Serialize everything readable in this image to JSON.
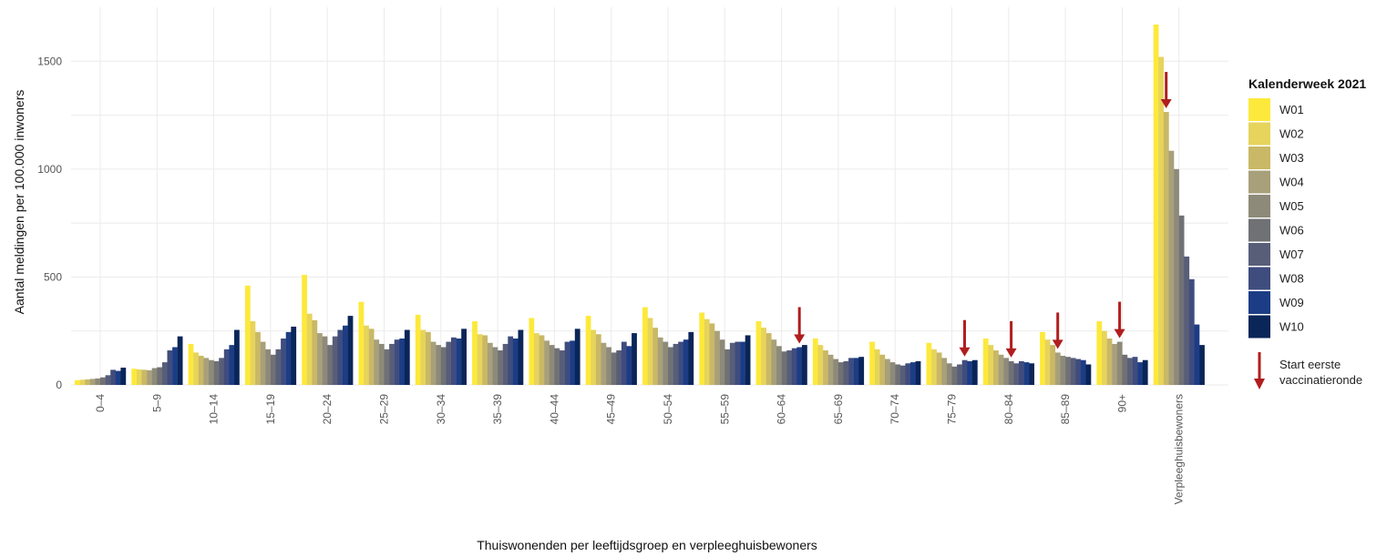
{
  "chart_data": {
    "type": "bar",
    "xlabel": "Thuiswonenden per leeftijdsgroep en verpleeghuisbewoners",
    "ylabel": "Aantal meldingen per 100.000 inwoners",
    "ylim": [
      0,
      1750
    ],
    "yticks": [
      0,
      500,
      1000,
      1500
    ],
    "ytick_labels": [
      "0",
      "500",
      "1000",
      "1500"
    ],
    "grid": true,
    "legend_title": "Kalenderweek 2021",
    "legend_position": "right",
    "categories": [
      "0–4",
      "5–9",
      "10–14",
      "15–19",
      "20–24",
      "25–29",
      "30–34",
      "35–39",
      "40–44",
      "45–49",
      "50–54",
      "55–59",
      "60–64",
      "65–69",
      "70–74",
      "75–79",
      "80–84",
      "85–89",
      "90+",
      "Verpleeghuisbewoners"
    ],
    "series": [
      {
        "name": "W01",
        "color": "#fde93b",
        "values": [
          22,
          75,
          190,
          460,
          510,
          385,
          325,
          295,
          310,
          320,
          360,
          335,
          295,
          215,
          200,
          195,
          215,
          245,
          295,
          1670
        ]
      },
      {
        "name": "W02",
        "color": "#e6d45c",
        "values": [
          24,
          72,
          150,
          295,
          330,
          275,
          255,
          235,
          240,
          255,
          310,
          305,
          265,
          185,
          165,
          165,
          185,
          210,
          250,
          1520
        ]
      },
      {
        "name": "W03",
        "color": "#c9b866",
        "values": [
          26,
          70,
          135,
          245,
          300,
          260,
          245,
          230,
          230,
          235,
          265,
          285,
          240,
          160,
          140,
          150,
          160,
          185,
          215,
          1265
        ]
      },
      {
        "name": "W04",
        "color": "#a8a07a",
        "values": [
          28,
          68,
          125,
          200,
          240,
          210,
          200,
          195,
          205,
          195,
          220,
          250,
          210,
          140,
          120,
          125,
          140,
          150,
          190,
          1085
        ]
      },
      {
        "name": "W05",
        "color": "#8d8a7a",
        "values": [
          30,
          78,
          115,
          165,
          225,
          190,
          185,
          175,
          185,
          175,
          200,
          210,
          180,
          120,
          105,
          100,
          125,
          135,
          200,
          1000
        ]
      },
      {
        "name": "W06",
        "color": "#707175",
        "values": [
          35,
          82,
          110,
          140,
          185,
          165,
          175,
          160,
          170,
          150,
          175,
          165,
          155,
          105,
          95,
          85,
          110,
          130,
          140,
          785
        ]
      },
      {
        "name": "W07",
        "color": "#585e78",
        "values": [
          45,
          105,
          125,
          165,
          225,
          190,
          200,
          190,
          160,
          160,
          190,
          195,
          160,
          110,
          90,
          95,
          100,
          125,
          125,
          595
        ]
      },
      {
        "name": "W08",
        "color": "#3f4c7e",
        "values": [
          70,
          160,
          165,
          215,
          255,
          210,
          220,
          225,
          200,
          200,
          200,
          200,
          170,
          125,
          100,
          115,
          110,
          120,
          130,
          490
        ]
      },
      {
        "name": "W09",
        "color": "#1c3d85",
        "values": [
          65,
          175,
          185,
          245,
          275,
          215,
          215,
          215,
          205,
          180,
          210,
          200,
          175,
          125,
          105,
          110,
          105,
          115,
          105,
          280
        ]
      },
      {
        "name": "W10",
        "color": "#0a2558",
        "values": [
          80,
          225,
          255,
          270,
          320,
          255,
          260,
          255,
          260,
          240,
          245,
          230,
          185,
          130,
          110,
          115,
          100,
          95,
          115,
          185
        ]
      }
    ],
    "arrow_color": "#b01e1e",
    "arrow_marker_label": "Start eerste vaccinatieronde",
    "vaccination_start_markers": [
      {
        "category": "60–64",
        "week": "W09"
      },
      {
        "category": "75–79",
        "week": "W08"
      },
      {
        "category": "80–84",
        "week": "W06"
      },
      {
        "category": "85–89",
        "week": "W04"
      },
      {
        "category": "90+",
        "week": "W05"
      },
      {
        "category": "Verpleeghuisbewoners",
        "week": "W03"
      }
    ]
  }
}
